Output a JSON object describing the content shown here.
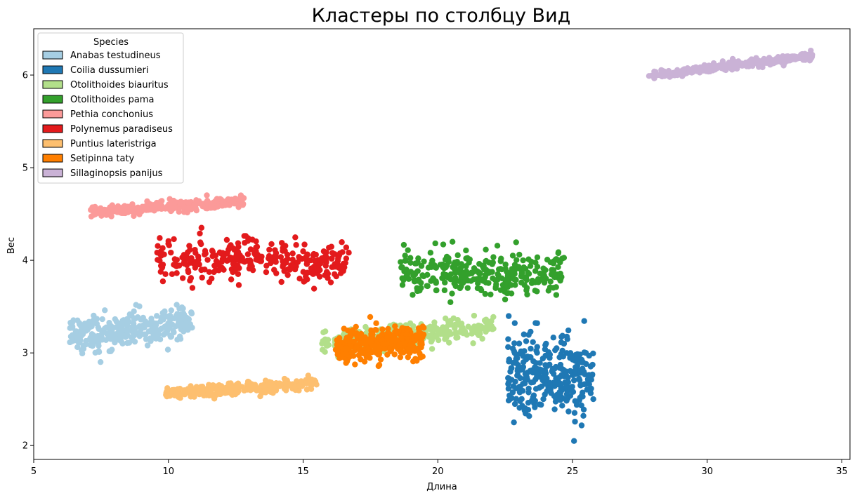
{
  "chart_data": {
    "type": "scatter",
    "title": "Кластеры по столбцу Вид",
    "xlabel": "Длина",
    "ylabel": "Вес",
    "xlim": [
      5,
      35.3
    ],
    "ylim": [
      1.85,
      6.5
    ],
    "xticks": [
      5,
      10,
      15,
      20,
      25,
      30,
      35
    ],
    "yticks": [
      2,
      3,
      4,
      5,
      6
    ],
    "xtick_labels": [
      "5",
      "10",
      "15",
      "20",
      "25",
      "30",
      "35"
    ],
    "ytick_labels": [
      "2",
      "3",
      "4",
      "5",
      "6"
    ],
    "grid": false,
    "legend": {
      "title": "Species",
      "placement": "top-left"
    },
    "series": [
      {
        "name": "Anabas testudineus",
        "color": "#a6cee3",
        "x_range": [
          6.3,
          10.9
        ],
        "y_center": 3.25,
        "y_spread": 0.1,
        "slope": 0.03,
        "count": 300
      },
      {
        "name": "Coilia dussumieri",
        "color": "#1f78b4",
        "x_range": [
          22.6,
          25.8
        ],
        "y_center": 2.75,
        "y_spread": 0.22,
        "slope": 0.0,
        "count": 300
      },
      {
        "name": "Otolithoides biauritus",
        "color": "#b2df8a",
        "x_range": [
          15.7,
          22.1
        ],
        "y_center": 3.2,
        "y_spread": 0.06,
        "slope": 0.025,
        "count": 300
      },
      {
        "name": "Otolithoides pama",
        "color": "#33a02c",
        "x_range": [
          18.6,
          24.7
        ],
        "y_center": 3.86,
        "y_spread": 0.12,
        "slope": 0.0,
        "count": 300
      },
      {
        "name": "Pethia conchonius",
        "color": "#fb9a99",
        "x_range": [
          7.1,
          12.8
        ],
        "y_center": 4.58,
        "y_spread": 0.03,
        "slope": 0.02,
        "count": 300
      },
      {
        "name": "Polynemus paradiseus",
        "color": "#e31a1c",
        "x_range": [
          9.5,
          16.7
        ],
        "y_center": 4.0,
        "y_spread": 0.12,
        "slope": 0.0,
        "count": 300
      },
      {
        "name": "Puntius lateristriga",
        "color": "#fdbf6f",
        "x_range": [
          9.9,
          15.5
        ],
        "y_center": 2.62,
        "y_spread": 0.03,
        "slope": 0.02,
        "count": 300
      },
      {
        "name": "Setipinna taty",
        "color": "#ff7f00",
        "x_range": [
          16.2,
          19.5
        ],
        "y_center": 3.1,
        "y_spread": 0.09,
        "slope": 0.03,
        "count": 300
      },
      {
        "name": "Sillaginopsis panijus",
        "color": "#cab2d6",
        "x_range": [
          27.8,
          33.9
        ],
        "y_center": 6.1,
        "y_spread": 0.025,
        "slope": 0.035,
        "count": 300
      }
    ]
  }
}
